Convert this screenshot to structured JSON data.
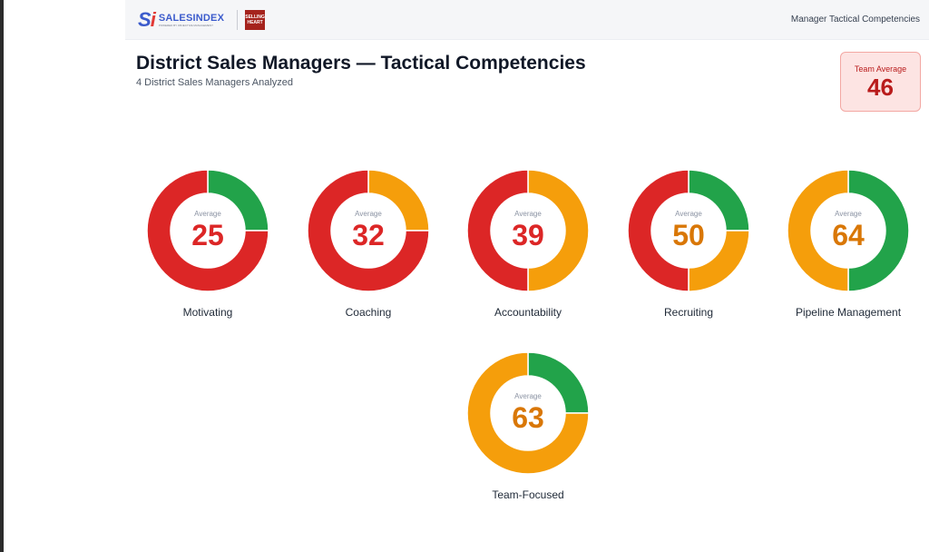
{
  "header": {
    "brand_word": "SALESINDEX",
    "brand_tagline": "POWERED BY OBJECTIVE MANAGEMENT GROUP",
    "partner_line1": "SELLING",
    "partner_line2": "HEART",
    "right_label": "Manager Tactical Competencies"
  },
  "page": {
    "title": "District Sales Managers — Tactical Competencies",
    "subtitle": "4 District Sales Managers Analyzed"
  },
  "team_average": {
    "label": "Team Average",
    "value": "46"
  },
  "colors": {
    "red": "#dc2626",
    "orange": "#f59e0b",
    "green": "#22a34a",
    "value_red": "#dc2626",
    "value_orange": "#d97706"
  },
  "competencies": [
    {
      "name": "Motivating",
      "avg_label": "Average",
      "value": "25",
      "value_color": "red",
      "segments": [
        {
          "color": "green",
          "fraction": 0.25
        },
        {
          "color": "red",
          "fraction": 0.75
        }
      ]
    },
    {
      "name": "Coaching",
      "avg_label": "Average",
      "value": "32",
      "value_color": "red",
      "segments": [
        {
          "color": "orange",
          "fraction": 0.25
        },
        {
          "color": "red",
          "fraction": 0.75
        }
      ]
    },
    {
      "name": "Accountability",
      "avg_label": "Average",
      "value": "39",
      "value_color": "red",
      "segments": [
        {
          "color": "orange",
          "fraction": 0.5
        },
        {
          "color": "red",
          "fraction": 0.5
        }
      ]
    },
    {
      "name": "Recruiting",
      "avg_label": "Average",
      "value": "50",
      "value_color": "orange",
      "segments": [
        {
          "color": "green",
          "fraction": 0.25
        },
        {
          "color": "orange",
          "fraction": 0.25
        },
        {
          "color": "red",
          "fraction": 0.5
        }
      ]
    },
    {
      "name": "Pipeline Management",
      "avg_label": "Average",
      "value": "64",
      "value_color": "orange",
      "segments": [
        {
          "color": "green",
          "fraction": 0.5
        },
        {
          "color": "orange",
          "fraction": 0.5
        }
      ]
    },
    {
      "name": "Team-Focused",
      "avg_label": "Average",
      "value": "63",
      "value_color": "orange",
      "segments": [
        {
          "color": "green",
          "fraction": 0.25
        },
        {
          "color": "orange",
          "fraction": 0.75
        }
      ]
    }
  ]
}
